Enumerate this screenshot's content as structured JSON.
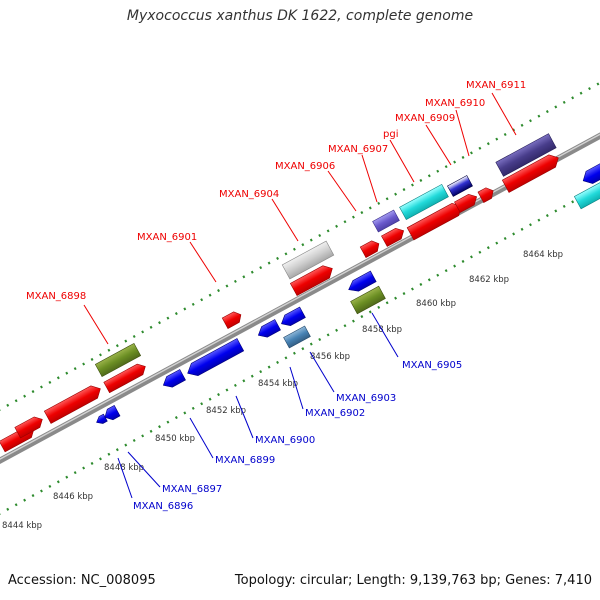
{
  "title": "Myxococcus xanthus DK 1622, complete genome",
  "footer": {
    "accession": "Accession: NC_008095",
    "summary": "Topology: circular; Length: 9,139,763 bp; Genes: 7,410"
  },
  "colors": {
    "forward_label": "#ee0000",
    "reverse_label": "#0000cc",
    "ruler_dots": "#2e8b2e",
    "backbone": "#888888"
  },
  "position_ticks": [
    "8444 kbp",
    "8446 kbp",
    "8448 kbp",
    "8450 kbp",
    "8452 kbp",
    "8454 kbp",
    "8456 kbp",
    "8458 kbp",
    "8460 kbp",
    "8462 kbp",
    "8464 kbp"
  ],
  "forward_labels": [
    "MXAN_6898",
    "MXAN_6901",
    "MXAN_6904",
    "MXAN_6906",
    "MXAN_6907",
    "pgi",
    "MXAN_6909",
    "MXAN_6910",
    "MXAN_6911"
  ],
  "reverse_labels": [
    "MXAN_6896",
    "MXAN_6897",
    "MXAN_6899",
    "MXAN_6900",
    "MXAN_6902",
    "MXAN_6903",
    "MXAN_6905"
  ]
}
